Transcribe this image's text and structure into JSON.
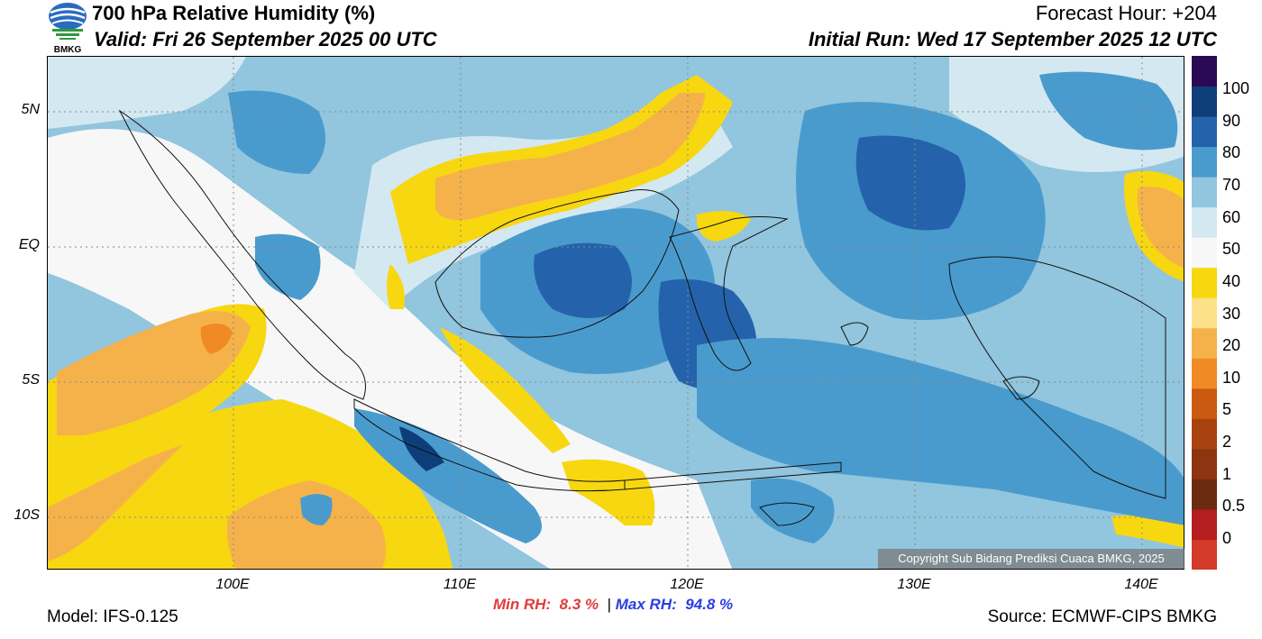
{
  "header": {
    "title": "700 hPa Relative Humidity (%)",
    "valid": "Valid: Fri 26 September 2025 00 UTC",
    "forecast_hour": "Forecast Hour: +204",
    "initial_run": "Initial Run: Wed 17 September 2025 12 UTC",
    "logo_text": "BMKG"
  },
  "map": {
    "lat_labels": [
      "5N",
      "EQ",
      "5S",
      "10S"
    ],
    "lon_labels": [
      "100E",
      "110E",
      "120E",
      "130E",
      "140E"
    ],
    "copyright": "Copyright Sub Bidang Prediksi Cuaca BMKG, 2025"
  },
  "colorbar": {
    "labels": [
      "100",
      "90",
      "80",
      "70",
      "60",
      "50",
      "40",
      "30",
      "20",
      "10",
      "5",
      "2",
      "1",
      "0.5",
      "0"
    ],
    "colors": [
      "#d43a2a",
      "#b51e1e",
      "#6b2b10",
      "#8c3510",
      "#a8430f",
      "#c95a10",
      "#f08a24",
      "#f5b24a",
      "#fde08a",
      "#f7d710",
      "#f7f7f7",
      "#d4e8f2",
      "#92c5de",
      "#4a9bcd",
      "#2463ab",
      "#0e3e7a",
      "#2b0a55"
    ]
  },
  "stats": {
    "min_label": "Min RH:",
    "min_value": "8.3 %",
    "separator": "|",
    "max_label": "Max RH:",
    "max_value": "94.8 %",
    "min_color": "#e03c3c",
    "max_color": "#2b3ee0"
  },
  "footer": {
    "model": "Model: IFS-0.125",
    "source": "Source: ECMWF-CIPS BMKG"
  }
}
